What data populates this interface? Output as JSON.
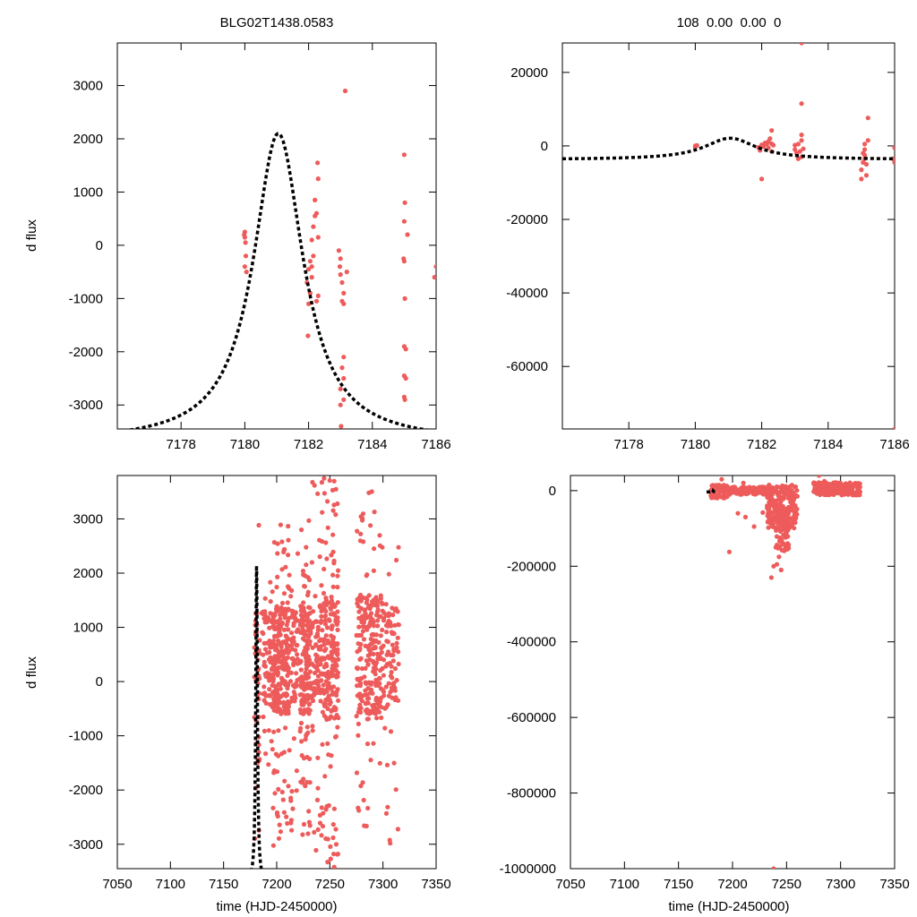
{
  "colors": {
    "points": "#ee5b5b",
    "model": "#000000",
    "axis": "#000000"
  },
  "chart_data": [
    {
      "type": "scatter",
      "panel": "top-left",
      "title": "BLG02T1438.0583",
      "xlabel": "",
      "ylabel": "d flux",
      "xlim": [
        7176,
        7186
      ],
      "ylim": [
        -3450,
        3800
      ],
      "xticks": [
        7178,
        7180,
        7182,
        7184,
        7186
      ],
      "yticks": [
        -3000,
        -2000,
        -1000,
        0,
        1000,
        2000,
        3000
      ],
      "model": {
        "type": "lorentzian",
        "center": 7181.05,
        "amplitude": 5800,
        "width": 0.95,
        "baseline": -3700,
        "x_range": [
          7176,
          7186
        ]
      },
      "points": [
        [
          7180.0,
          250
        ],
        [
          7180.0,
          150
        ],
        [
          7180.02,
          50
        ],
        [
          7180.03,
          -200
        ],
        [
          7180.0,
          -400
        ],
        [
          7180.05,
          -500
        ],
        [
          7179.98,
          200
        ],
        [
          7182.0,
          -450
        ],
        [
          7181.95,
          -700
        ],
        [
          7182.05,
          -900
        ],
        [
          7182.0,
          -1100
        ],
        [
          7181.98,
          -1700
        ],
        [
          7182.1,
          -400
        ],
        [
          7182.15,
          -200
        ],
        [
          7182.1,
          100
        ],
        [
          7182.15,
          350
        ],
        [
          7182.2,
          550
        ],
        [
          7182.25,
          600
        ],
        [
          7182.2,
          850
        ],
        [
          7182.3,
          1250
        ],
        [
          7182.28,
          1550
        ],
        [
          7182.05,
          -300
        ],
        [
          7182.3,
          150
        ],
        [
          7182.3,
          -950
        ],
        [
          7182.25,
          -1050
        ],
        [
          7182.1,
          -600
        ],
        [
          7182.95,
          -100
        ],
        [
          7183.0,
          -250
        ],
        [
          7182.98,
          -400
        ],
        [
          7183.0,
          -550
        ],
        [
          7183.05,
          -700
        ],
        [
          7183.1,
          -900
        ],
        [
          7183.05,
          -1050
        ],
        [
          7183.1,
          -1100
        ],
        [
          7183.2,
          -500
        ],
        [
          7183.1,
          -2100
        ],
        [
          7183.05,
          -2300
        ],
        [
          7183.1,
          -2500
        ],
        [
          7183.0,
          -2700
        ],
        [
          7183.1,
          -2900
        ],
        [
          7183.15,
          2900
        ],
        [
          7183.0,
          -3000
        ],
        [
          7183.02,
          -3400
        ],
        [
          7185.0,
          1700
        ],
        [
          7185.02,
          800
        ],
        [
          7185.0,
          450
        ],
        [
          7185.1,
          200
        ],
        [
          7184.98,
          -250
        ],
        [
          7185.0,
          -300
        ],
        [
          7185.02,
          -1000
        ],
        [
          7185.0,
          -1900
        ],
        [
          7185.05,
          -1950
        ],
        [
          7185.0,
          -2450
        ],
        [
          7185.05,
          -2500
        ],
        [
          7185.0,
          -2850
        ],
        [
          7185.02,
          -2900
        ],
        [
          7186.0,
          -400
        ],
        [
          7185.95,
          -600
        ]
      ]
    },
    {
      "type": "scatter",
      "panel": "top-right",
      "title": "108  0.00  0.00  0",
      "xlabel": "",
      "ylabel": "",
      "xlim": [
        7176,
        7186
      ],
      "ylim": [
        -77000,
        28000
      ],
      "xticks": [
        7178,
        7180,
        7182,
        7184,
        7186
      ],
      "yticks": [
        -60000,
        -40000,
        -20000,
        0,
        20000
      ],
      "model": {
        "type": "lorentzian",
        "center": 7181.05,
        "amplitude": 5800,
        "width": 0.95,
        "baseline": -3700,
        "x_range": [
          7176,
          7186
        ]
      },
      "points": [
        [
          7180.0,
          0
        ],
        [
          7180.0,
          -300
        ],
        [
          7180.05,
          150
        ],
        [
          7181.9,
          -400
        ],
        [
          7181.95,
          -1200
        ],
        [
          7182.0,
          300
        ],
        [
          7182.0,
          -9000
        ],
        [
          7182.05,
          -200
        ],
        [
          7182.1,
          800
        ],
        [
          7182.15,
          500
        ],
        [
          7182.2,
          -500
        ],
        [
          7182.2,
          1200
        ],
        [
          7182.25,
          2000
        ],
        [
          7182.3,
          4200
        ],
        [
          7182.3,
          -1500
        ],
        [
          7182.3,
          600
        ],
        [
          7182.35,
          200
        ],
        [
          7183.0,
          200
        ],
        [
          7183.0,
          -1000
        ],
        [
          7183.05,
          -2000
        ],
        [
          7183.1,
          -3500
        ],
        [
          7183.1,
          500
        ],
        [
          7183.15,
          -1500
        ],
        [
          7183.2,
          1500
        ],
        [
          7183.2,
          -3000
        ],
        [
          7183.2,
          3000
        ],
        [
          7183.25,
          -800
        ],
        [
          7183.2,
          11500
        ],
        [
          7183.2,
          28000
        ],
        [
          7185.0,
          -9000
        ],
        [
          7185.0,
          -6500
        ],
        [
          7185.05,
          -4500
        ],
        [
          7185.05,
          -2000
        ],
        [
          7185.1,
          -3500
        ],
        [
          7185.1,
          -1000
        ],
        [
          7185.1,
          500
        ],
        [
          7185.15,
          -5000
        ],
        [
          7185.2,
          1500
        ],
        [
          7185.2,
          7600
        ],
        [
          7185.15,
          -8000
        ],
        [
          7185.1,
          -2500
        ],
        [
          7186.0,
          -500
        ],
        [
          7185.95,
          -3500
        ],
        [
          7186.0,
          -4500
        ],
        [
          7186.0,
          -77000
        ]
      ]
    },
    {
      "type": "scatter",
      "panel": "bottom-left",
      "title": "",
      "xlabel": "time (HJD-2450000)",
      "ylabel": "d flux",
      "xlim": [
        7050,
        7350
      ],
      "ylim": [
        -3450,
        3800
      ],
      "xticks": [
        7050,
        7100,
        7150,
        7200,
        7250,
        7300,
        7350
      ],
      "yticks": [
        -3000,
        -2000,
        -1000,
        0,
        1000,
        2000,
        3000
      ],
      "model": {
        "type": "lorentzian",
        "center": 7181.05,
        "amplitude": 5800,
        "width": 0.95,
        "baseline": -3700,
        "x_range": [
          7176,
          7186
        ]
      },
      "clusters": [
        {
          "x": [
            7179,
            7184
          ],
          "y": [
            -3450,
            2900
          ],
          "count": 45,
          "y_core": [
            -1500,
            1500
          ]
        },
        {
          "x": [
            7186,
            7196
          ],
          "y": [
            -2500,
            2700
          ],
          "count": 70,
          "y_core": [
            -500,
            1300
          ]
        },
        {
          "x": [
            7196,
            7212
          ],
          "y": [
            -3100,
            3100
          ],
          "count": 280,
          "y_core": [
            -600,
            1400
          ]
        },
        {
          "x": [
            7213,
            7220
          ],
          "y": [
            -3000,
            2500
          ],
          "count": 60,
          "y_core": [
            -400,
            1300
          ]
        },
        {
          "x": [
            7222,
            7232
          ],
          "y": [
            -3050,
            3000
          ],
          "count": 170,
          "y_core": [
            -600,
            1400
          ]
        },
        {
          "x": [
            7233,
            7240
          ],
          "y": [
            -3300,
            3750
          ],
          "count": 60,
          "y_core": [
            -400,
            1300
          ]
        },
        {
          "x": [
            7240,
            7258
          ],
          "y": [
            -3450,
            3750
          ],
          "count": 240,
          "y_core": [
            -700,
            1500
          ]
        },
        {
          "x": [
            7275,
            7300
          ],
          "y": [
            -2700,
            3700
          ],
          "count": 260,
          "y_core": [
            -700,
            1600
          ]
        },
        {
          "x": [
            7300,
            7315
          ],
          "y": [
            -3200,
            2700
          ],
          "count": 90,
          "y_core": [
            -500,
            1400
          ]
        }
      ]
    },
    {
      "type": "scatter",
      "panel": "bottom-right",
      "title": "",
      "xlabel": "time (HJD-2450000)",
      "ylabel": "",
      "xlim": [
        7050,
        7350
      ],
      "ylim": [
        -1000000,
        40000
      ],
      "xticks": [
        7050,
        7100,
        7150,
        7200,
        7250,
        7300,
        7350
      ],
      "yticks": [
        -1000000,
        -800000,
        -600000,
        -400000,
        -200000,
        0
      ],
      "model": {
        "type": "lorentzian",
        "center": 7181.05,
        "amplitude": 5800,
        "width": 0.95,
        "baseline": -3700,
        "x_range": [
          7176,
          7186
        ]
      },
      "points": [
        [
          7197,
          -162000
        ],
        [
          7205,
          -60000
        ],
        [
          7212,
          -70000
        ],
        [
          7220,
          -95000
        ],
        [
          7228,
          -58000
        ],
        [
          7232,
          -40000
        ],
        [
          7236,
          -230000
        ],
        [
          7238,
          -200000
        ],
        [
          7240,
          -150000
        ],
        [
          7241,
          -195000
        ],
        [
          7243,
          -175000
        ],
        [
          7245,
          -210000
        ],
        [
          7247,
          -140000
        ],
        [
          7249,
          -120000
        ],
        [
          7252,
          -100000
        ],
        [
          7238,
          -1000000
        ],
        [
          7280,
          40000
        ],
        [
          7285,
          25000
        ],
        [
          7260,
          -15000
        ],
        [
          7190,
          30000
        ],
        [
          7210,
          20000
        ]
      ],
      "clusters": [
        {
          "x": [
            7180,
            7195
          ],
          "y": [
            -20000,
            15000
          ],
          "count": 70
        },
        {
          "x": [
            7195,
            7232
          ],
          "y": [
            -10000,
            10000
          ],
          "count": 110
        },
        {
          "x": [
            7232,
            7260
          ],
          "y": [
            -100000,
            15000
          ],
          "count": 220
        },
        {
          "x": [
            7240,
            7252
          ],
          "y": [
            -160000,
            -40000
          ],
          "count": 60
        },
        {
          "x": [
            7275,
            7318
          ],
          "y": [
            -12000,
            22000
          ],
          "count": 220
        }
      ]
    }
  ]
}
